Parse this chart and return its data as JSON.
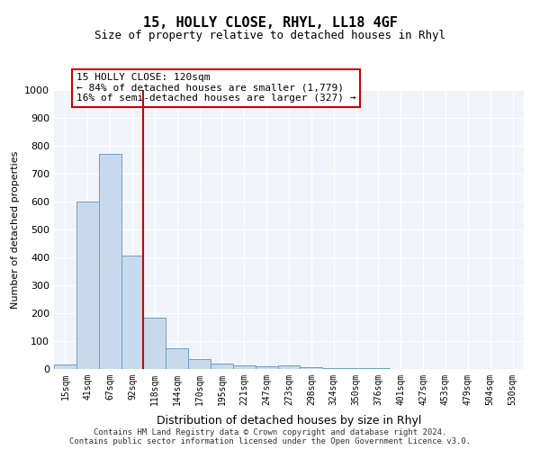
{
  "title1": "15, HOLLY CLOSE, RHYL, LL18 4GF",
  "title2": "Size of property relative to detached houses in Rhyl",
  "xlabel": "Distribution of detached houses by size in Rhyl",
  "ylabel": "Number of detached properties",
  "categories": [
    "15sqm",
    "41sqm",
    "67sqm",
    "92sqm",
    "118sqm",
    "144sqm",
    "170sqm",
    "195sqm",
    "221sqm",
    "247sqm",
    "273sqm",
    "298sqm",
    "324sqm",
    "350sqm",
    "376sqm",
    "401sqm",
    "427sqm",
    "453sqm",
    "479sqm",
    "504sqm",
    "530sqm"
  ],
  "bar_heights": [
    15,
    600,
    770,
    405,
    185,
    75,
    37,
    18,
    13,
    10,
    13,
    6,
    4,
    3,
    2,
    1,
    1,
    1,
    1,
    1,
    1
  ],
  "bar_color": "#c9d9ed",
  "bar_edge_color": "#6d9ec4",
  "vline_x": 4,
  "vline_color": "#cc0000",
  "annotation_text": "15 HOLLY CLOSE: 120sqm\n← 84% of detached houses are smaller (1,779)\n16% of semi-detached houses are larger (327) →",
  "annotation_box_color": "#ffffff",
  "annotation_box_edge": "#cc0000",
  "ylim": [
    0,
    1000
  ],
  "yticks": [
    0,
    100,
    200,
    300,
    400,
    500,
    600,
    700,
    800,
    900,
    1000
  ],
  "footer": "Contains HM Land Registry data © Crown copyright and database right 2024.\nContains public sector information licensed under the Open Government Licence v3.0.",
  "bg_color": "#f0f4fa",
  "grid_color": "#ffffff"
}
